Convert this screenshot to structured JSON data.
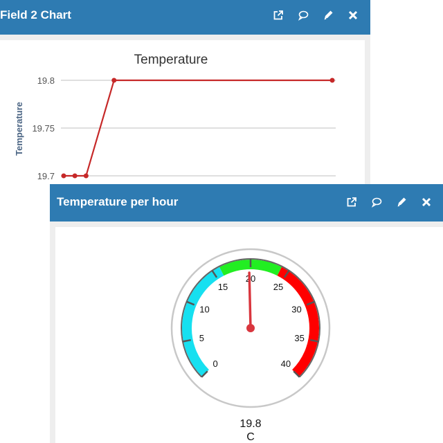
{
  "back_panel": {
    "title": "Field 2 Chart",
    "icons": [
      "external-link-icon",
      "comment-icon",
      "pencil-icon",
      "close-icon"
    ]
  },
  "front_panel": {
    "title": "Temperature per hour",
    "icons": [
      "external-link-icon",
      "comment-icon",
      "pencil-icon",
      "close-icon"
    ]
  },
  "line_chart_colors": {
    "line": "#c62828",
    "grid": "#cccccc"
  },
  "gauge_colors": {
    "low": "#16e0f0",
    "mid": "#22ee22",
    "high": "#ff0000",
    "needle": "#d9363e"
  },
  "chart_data": [
    {
      "type": "line",
      "title": "Temperature",
      "ylabel": "Temperature",
      "xlabel": "",
      "y_ticks": [
        "19.7",
        "19.75",
        "19.8"
      ],
      "ylim": [
        19.7,
        19.8
      ],
      "series": [
        {
          "points": [
            [
              0,
              19.7
            ],
            [
              1,
              19.7
            ],
            [
              2,
              19.7
            ],
            [
              4.5,
              19.8
            ],
            [
              24,
              19.8
            ]
          ]
        }
      ],
      "xlim": [
        0,
        24.5
      ]
    },
    {
      "type": "gauge",
      "min": 0,
      "max": 40,
      "ticks": [
        "0",
        "5",
        "10",
        "15",
        "20",
        "25",
        "30",
        "35",
        "40"
      ],
      "bands": [
        {
          "from": 0,
          "to": 16,
          "color": "low"
        },
        {
          "from": 16,
          "to": 24,
          "color": "mid"
        },
        {
          "from": 24,
          "to": 40,
          "color": "high"
        }
      ],
      "value": 19.8,
      "value_label": "19.8",
      "unit": "C"
    }
  ]
}
